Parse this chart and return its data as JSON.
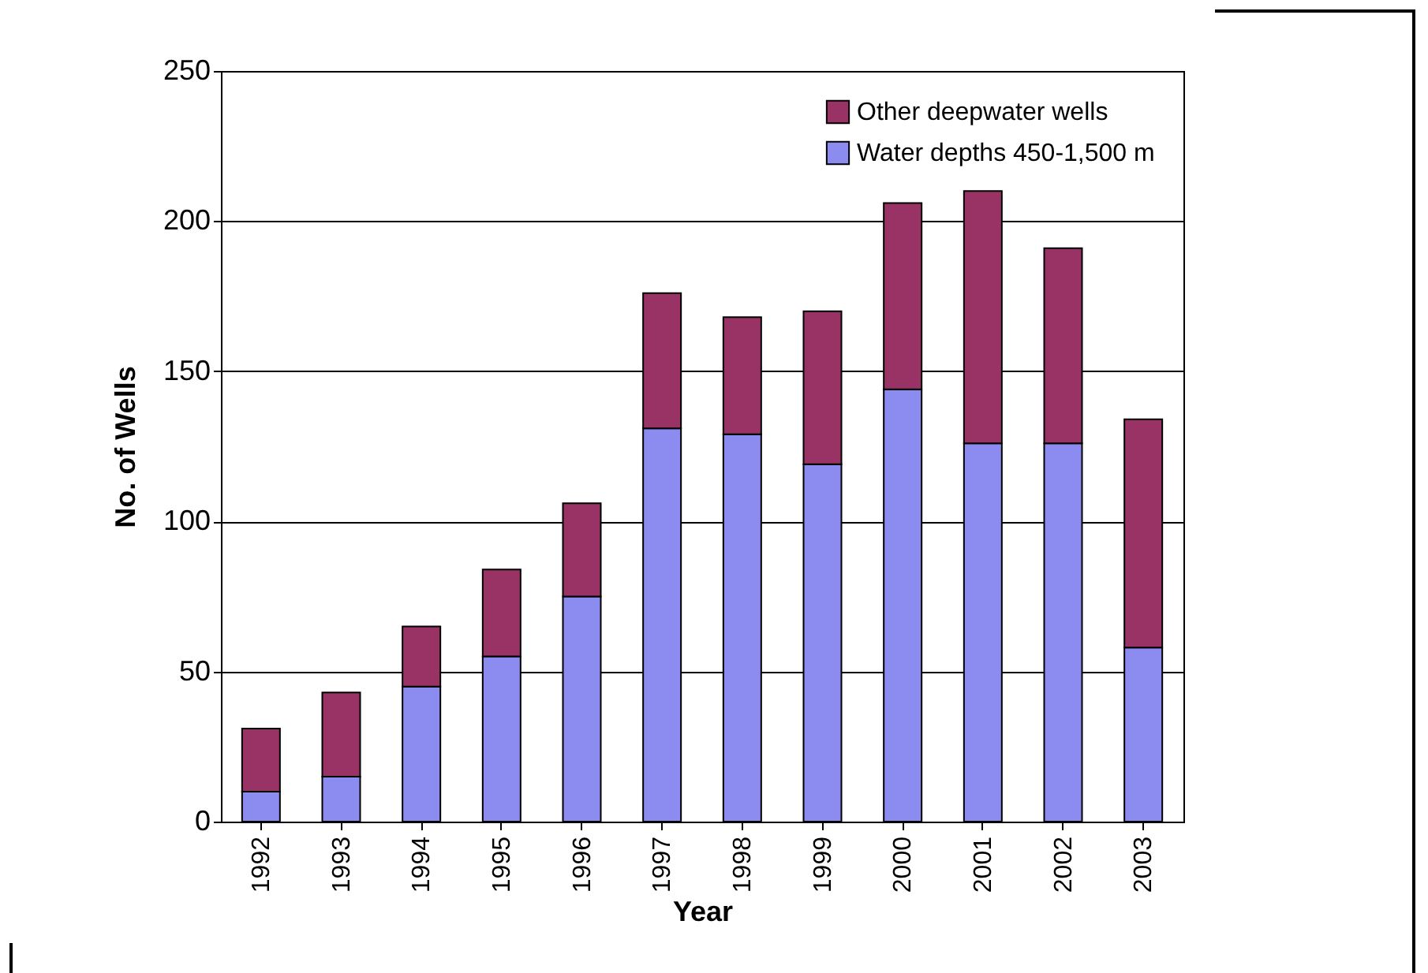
{
  "chart_data": {
    "type": "bar",
    "stacked": true,
    "xlabel": "Year",
    "ylabel": "No. of Wells",
    "categories": [
      "1992",
      "1993",
      "1994",
      "1995",
      "1996",
      "1997",
      "1998",
      "1999",
      "2000",
      "2001",
      "2002",
      "2003"
    ],
    "series": [
      {
        "name": "Water depths 450-1,500 m",
        "color": "#8c8cf0",
        "values": [
          10,
          15,
          45,
          55,
          75,
          131,
          129,
          119,
          144,
          126,
          126,
          58
        ]
      },
      {
        "name": "Other deepwater wells",
        "color": "#993366",
        "values": [
          21,
          28,
          20,
          29,
          31,
          45,
          39,
          51,
          62,
          84,
          65,
          76
        ]
      }
    ],
    "ylim": [
      0,
      250
    ],
    "yticks": [
      0,
      50,
      100,
      150,
      200,
      250
    ],
    "grid": "y",
    "legend": "top right"
  }
}
